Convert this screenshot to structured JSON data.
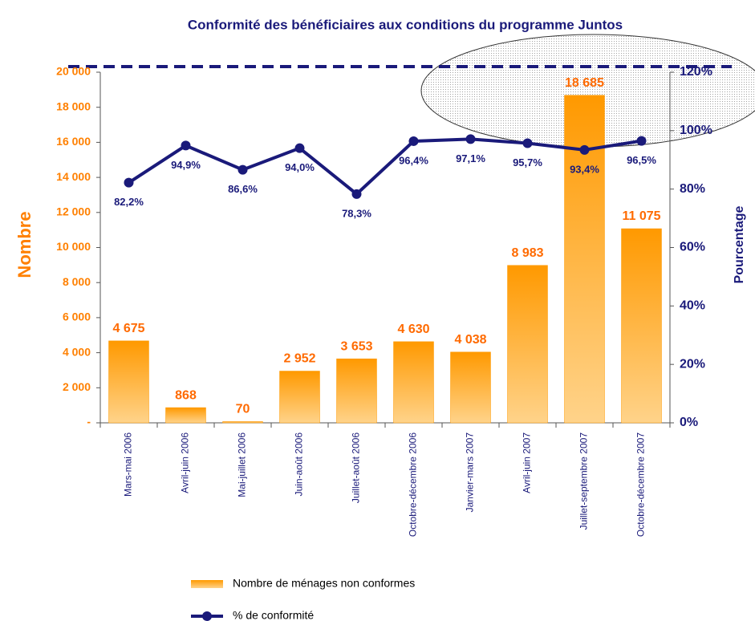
{
  "chart_data": {
    "type": "bar",
    "title": "Conformité des bénéficiaires aux conditions du programme Juntos",
    "y_label": "Nombre",
    "y2_label": "Pourcentage",
    "categories": [
      "Mars-mai 2006",
      "Avril-juin 2006",
      "Mai-juillet 2006",
      "Juin-août 2006",
      "Juillet-août 2006",
      "Octobre-décembre 2006",
      "Janvier-mars 2007",
      "Avril-juin 2007",
      "Juillet-septembre 2007",
      "Octobre-décembre 2007"
    ],
    "series": [
      {
        "name": "Nombre de ménages non conformes",
        "type": "bar",
        "color": "#ff9900",
        "values": [
          4675,
          868,
          70,
          2952,
          3653,
          4630,
          4038,
          8983,
          18685,
          11075
        ],
        "value_labels": [
          "4 675",
          "868",
          "70",
          "2 952",
          "3 653",
          "4 630",
          "4 038",
          "8 983",
          "18 685",
          "11 075"
        ]
      },
      {
        "name": "% de conformité",
        "type": "line",
        "axis": "y2",
        "color": "#1a1a7a",
        "values": [
          82.2,
          94.9,
          86.6,
          94.0,
          78.3,
          96.4,
          97.1,
          95.7,
          93.4,
          96.5
        ],
        "value_labels": [
          "82,2%",
          "94,9%",
          "86,6%",
          "94,0%",
          "78,3%",
          "96,4%",
          "97,1%",
          "95,7%",
          "93,4%",
          "96,5%"
        ]
      }
    ],
    "ylim": [
      0,
      20000
    ],
    "yticks": [
      {
        "value": 0,
        "label": "-"
      },
      {
        "value": 2000,
        "label": "2 000"
      },
      {
        "value": 4000,
        "label": "4 000"
      },
      {
        "value": 6000,
        "label": "6 000"
      },
      {
        "value": 8000,
        "label": "8 000"
      },
      {
        "value": 10000,
        "label": "10 000"
      },
      {
        "value": 12000,
        "label": "12 000"
      },
      {
        "value": 14000,
        "label": "14 000"
      },
      {
        "value": 16000,
        "label": "16 000"
      },
      {
        "value": 18000,
        "label": "18 000"
      },
      {
        "value": 20000,
        "label": "20 000"
      }
    ],
    "y2lim": [
      0,
      120
    ],
    "y2ticks": [
      {
        "value": 0,
        "label": "0%"
      },
      {
        "value": 20,
        "label": "20%"
      },
      {
        "value": 40,
        "label": "40%"
      },
      {
        "value": 60,
        "label": "60%"
      },
      {
        "value": 80,
        "label": "80%"
      },
      {
        "value": 100,
        "label": "100%"
      },
      {
        "value": 120,
        "label": "120%"
      }
    ]
  }
}
